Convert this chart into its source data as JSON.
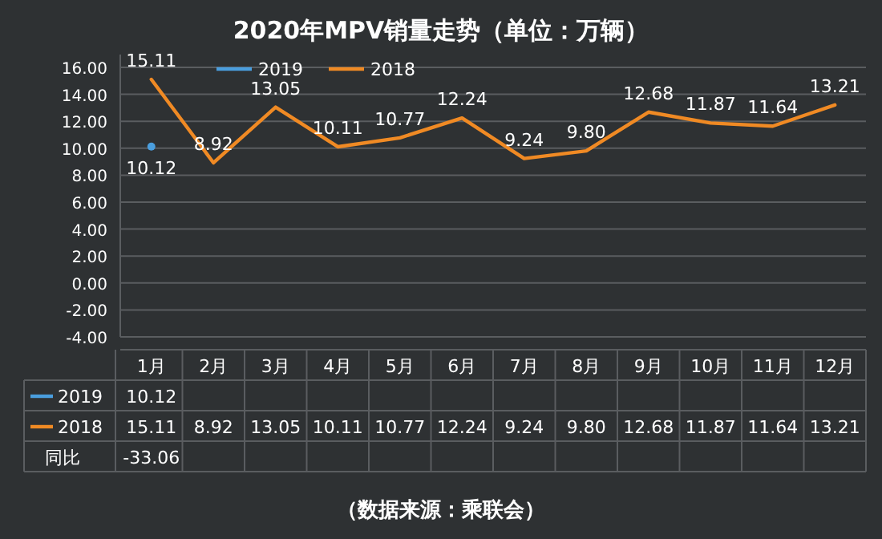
{
  "chart_data": {
    "type": "line",
    "title": "2020年MPV销量走势（单位：万辆）",
    "categories": [
      "1月",
      "2月",
      "3月",
      "4月",
      "5月",
      "6月",
      "7月",
      "8月",
      "9月",
      "10月",
      "11月",
      "12月"
    ],
    "series": [
      {
        "name": "2019",
        "color": "#4a9ede",
        "marker": "circle",
        "values": [
          10.12,
          null,
          null,
          null,
          null,
          null,
          null,
          null,
          null,
          null,
          null,
          null
        ],
        "value_labels": [
          "10.12",
          null,
          null,
          null,
          null,
          null,
          null,
          null,
          null,
          null,
          null,
          null
        ]
      },
      {
        "name": "2018",
        "color": "#f08a24",
        "values": [
          15.11,
          8.92,
          13.05,
          10.11,
          10.77,
          12.24,
          9.24,
          9.8,
          12.68,
          11.87,
          11.64,
          13.21
        ],
        "value_labels": [
          "15.11",
          "8.92",
          "13.05",
          "10.11",
          "10.77",
          "12.24",
          "9.24",
          "9.80",
          "12.68",
          "11.87",
          "11.64",
          "13.21"
        ]
      }
    ],
    "ylim": [
      -4,
      16
    ],
    "yticks": [
      {
        "value": -4,
        "label": "-4.00"
      },
      {
        "value": -2,
        "label": "-2.00"
      },
      {
        "value": 0,
        "label": "0.00"
      },
      {
        "value": 2,
        "label": "2.00"
      },
      {
        "value": 4,
        "label": "4.00"
      },
      {
        "value": 6,
        "label": "6.00"
      },
      {
        "value": 8,
        "label": "8.00"
      },
      {
        "value": 10,
        "label": "10.00"
      },
      {
        "value": 12,
        "label": "12.00"
      },
      {
        "value": 14,
        "label": "14.00"
      },
      {
        "value": 16,
        "label": "16.00"
      }
    ],
    "grid": "y",
    "legend": "top left",
    "line_style": "solid",
    "annotations": [
      "同比",
      "-33.06",
      "（数据来源：乘联会）"
    ]
  }
}
